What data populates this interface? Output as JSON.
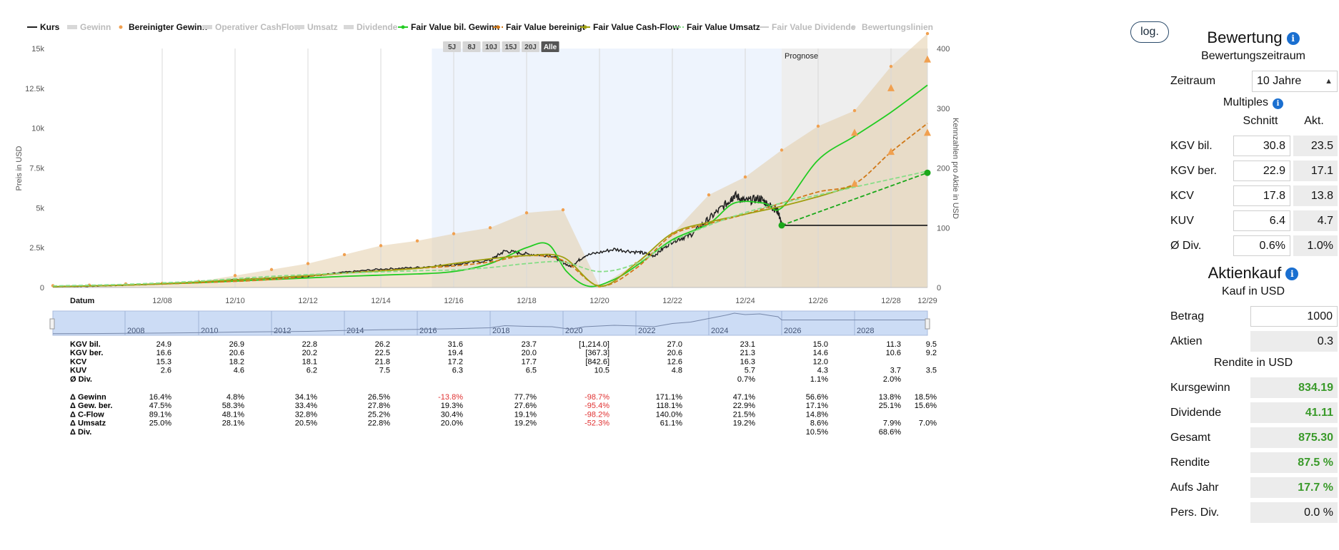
{
  "legend": [
    {
      "label": "Kurs",
      "color": "#222222",
      "style": "solid",
      "active": true
    },
    {
      "label": "Gewinn",
      "color": "#cccccc",
      "style": "area",
      "active": false
    },
    {
      "label": "Bereinigter Gewinn",
      "color": "#f0a050",
      "style": "dot",
      "active": true
    },
    {
      "label": "Operativer CashFlow",
      "color": "#cccccc",
      "style": "area",
      "active": false
    },
    {
      "label": "Umsatz",
      "color": "#cccccc",
      "style": "area",
      "active": false
    },
    {
      "label": "Dividende",
      "color": "#cccccc",
      "style": "bar",
      "active": false
    },
    {
      "label": "Fair Value bil. Gewinn",
      "color": "#22cc22",
      "style": "solid-dot",
      "active": true
    },
    {
      "label": "Fair Value bereinigt",
      "color": "#d07818",
      "style": "dashed-dot",
      "active": true
    },
    {
      "label": "Fair Value Cash-Flow",
      "color": "#a0a010",
      "style": "solid-dot",
      "active": true
    },
    {
      "label": "Fair Value Umsatz",
      "color": "#88dd88",
      "style": "dashed",
      "active": true
    },
    {
      "label": "Fair Value Dividende",
      "color": "#cccccc",
      "style": "solid",
      "active": false
    },
    {
      "label": "Bewertungslinien",
      "color": "#cccccc",
      "style": "dots",
      "active": false
    }
  ],
  "log_button": "log.",
  "range_buttons": [
    "5J",
    "8J",
    "10J",
    "15J",
    "20J",
    "Alle"
  ],
  "active_range": "Alle",
  "prognose_label": "Prognose",
  "chart_data": {
    "type": "line",
    "ylabel_left": "Preis in USD",
    "ylabel_right": "Kennzahlen pro Aktie in USD",
    "yticks_left": [
      "15k",
      "12.5k",
      "10k",
      "7.5k",
      "5k",
      "2.5k",
      "0"
    ],
    "yticks_left_values": [
      15000,
      12500,
      10000,
      7500,
      5000,
      2500,
      0
    ],
    "yticks_right": [
      "400",
      "300",
      "200",
      "100",
      "0"
    ],
    "yticks_right_values": [
      400,
      300,
      200,
      100,
      0
    ],
    "ylim_left": [
      0,
      15000
    ],
    "ylim_right": [
      0,
      400
    ],
    "xlim": [
      2005.9,
      2029.9
    ],
    "x_first_label": "Datum",
    "xticks": [
      {
        "label": "12/08",
        "x": 2008.9
      },
      {
        "label": "12/10",
        "x": 2010.9
      },
      {
        "label": "12/12",
        "x": 2012.9
      },
      {
        "label": "12/14",
        "x": 2014.9
      },
      {
        "label": "12/16",
        "x": 2016.9
      },
      {
        "label": "12/18",
        "x": 2018.9
      },
      {
        "label": "12/20",
        "x": 2020.9
      },
      {
        "label": "12/22",
        "x": 2022.9
      },
      {
        "label": "12/24",
        "x": 2024.9
      },
      {
        "label": "12/26",
        "x": 2026.9
      },
      {
        "label": "12/28",
        "x": 2028.9
      },
      {
        "label": "12/29",
        "x": 2029.9
      }
    ],
    "highlight_range": [
      2016.3,
      2025.9
    ],
    "prognose_start": 2025.9,
    "series": [
      {
        "name": "Kurs",
        "axis": "left",
        "color": "#222222",
        "points": [
          [
            2005.9,
            60
          ],
          [
            2006.9,
            80
          ],
          [
            2007.9,
            150
          ],
          [
            2008.9,
            230
          ],
          [
            2009.9,
            330
          ],
          [
            2010.9,
            500
          ],
          [
            2011.9,
            600
          ],
          [
            2012.9,
            700
          ],
          [
            2013.9,
            950
          ],
          [
            2014.9,
            1150
          ],
          [
            2015.9,
            1250
          ],
          [
            2016.9,
            1450
          ],
          [
            2017.9,
            1700
          ],
          [
            2018.3,
            2300
          ],
          [
            2018.9,
            2100
          ],
          [
            2019.6,
            2000
          ],
          [
            2020.1,
            1300
          ],
          [
            2020.5,
            2000
          ],
          [
            2021.3,
            2400
          ],
          [
            2022.0,
            2200
          ],
          [
            2022.4,
            2000
          ],
          [
            2022.9,
            2900
          ],
          [
            2023.4,
            3300
          ],
          [
            2023.9,
            4300
          ],
          [
            2024.4,
            5300
          ],
          [
            2024.6,
            5800
          ],
          [
            2024.9,
            5400
          ],
          [
            2025.3,
            5600
          ],
          [
            2025.6,
            5100
          ],
          [
            2025.8,
            4800
          ],
          [
            2025.9,
            3900
          ]
        ]
      },
      {
        "name": "Kurs Prognose",
        "axis": "left",
        "color": "#222222",
        "points": [
          [
            2025.9,
            3900
          ],
          [
            2029.9,
            3900
          ]
        ]
      },
      {
        "name": "Bereinigter Gewinn",
        "axis": "right",
        "color": "#f0a050",
        "area": true,
        "points": [
          [
            2005.9,
            3
          ],
          [
            2006.9,
            4
          ],
          [
            2007.9,
            6
          ],
          [
            2008.9,
            7
          ],
          [
            2009.9,
            10
          ],
          [
            2010.9,
            20
          ],
          [
            2011.9,
            30
          ],
          [
            2012.9,
            40
          ],
          [
            2013.9,
            55
          ],
          [
            2014.9,
            70
          ],
          [
            2015.9,
            78
          ],
          [
            2016.9,
            90
          ],
          [
            2017.9,
            100
          ],
          [
            2018.9,
            125
          ],
          [
            2019.9,
            130
          ],
          [
            2020.9,
            2
          ],
          [
            2021.9,
            40
          ],
          [
            2022.9,
            90
          ],
          [
            2023.9,
            155
          ],
          [
            2024.9,
            185
          ],
          [
            2025.9,
            230
          ],
          [
            2026.9,
            270
          ],
          [
            2027.9,
            296
          ],
          [
            2028.9,
            370
          ],
          [
            2029.9,
            425
          ]
        ]
      },
      {
        "name": "Fair Value bil. Gewinn",
        "axis": "left",
        "color": "#22cc22",
        "points": [
          [
            2005.9,
            50
          ],
          [
            2007.9,
            150
          ],
          [
            2009.9,
            300
          ],
          [
            2011.9,
            500
          ],
          [
            2013.9,
            700
          ],
          [
            2015.9,
            850
          ],
          [
            2016.9,
            1000
          ],
          [
            2017.9,
            1500
          ],
          [
            2018.9,
            2500
          ],
          [
            2019.5,
            2700
          ],
          [
            2020.0,
            1000
          ],
          [
            2020.6,
            80
          ],
          [
            2021.3,
            500
          ],
          [
            2022.0,
            1500
          ],
          [
            2022.9,
            3000
          ],
          [
            2023.9,
            4000
          ],
          [
            2024.6,
            5300
          ],
          [
            2025.4,
            5300
          ],
          [
            2025.9,
            5000
          ],
          [
            2026.9,
            8000
          ],
          [
            2027.9,
            9500
          ],
          [
            2028.9,
            11000
          ],
          [
            2029.9,
            12700
          ]
        ]
      },
      {
        "name": "Fair Value bereinigt",
        "axis": "left",
        "color": "#d07818",
        "dashed": true,
        "points": [
          [
            2005.9,
            50
          ],
          [
            2007.9,
            150
          ],
          [
            2009.9,
            300
          ],
          [
            2011.9,
            500
          ],
          [
            2013.9,
            900
          ],
          [
            2015.9,
            1200
          ],
          [
            2016.9,
            1350
          ],
          [
            2017.9,
            1600
          ],
          [
            2018.9,
            2000
          ],
          [
            2019.9,
            1700
          ],
          [
            2020.9,
            100
          ],
          [
            2021.9,
            1200
          ],
          [
            2022.9,
            3300
          ],
          [
            2023.9,
            4000
          ],
          [
            2024.9,
            4600
          ],
          [
            2025.9,
            5300
          ],
          [
            2026.9,
            6000
          ],
          [
            2027.9,
            6500
          ],
          [
            2028.9,
            8500
          ],
          [
            2029.9,
            10300
          ]
        ]
      },
      {
        "name": "Fair Value Cash-Flow",
        "axis": "left",
        "color": "#a0a010",
        "points": [
          [
            2005.9,
            50
          ],
          [
            2007.9,
            150
          ],
          [
            2009.9,
            350
          ],
          [
            2011.9,
            600
          ],
          [
            2013.9,
            900
          ],
          [
            2015.9,
            1200
          ],
          [
            2016.9,
            1500
          ],
          [
            2017.9,
            1800
          ],
          [
            2018.9,
            2000
          ],
          [
            2019.9,
            1900
          ],
          [
            2020.9,
            80
          ],
          [
            2021.9,
            1500
          ],
          [
            2022.9,
            3400
          ],
          [
            2023.9,
            4100
          ],
          [
            2024.9,
            4600
          ],
          [
            2025.9,
            5100
          ],
          [
            2026.9,
            5700
          ],
          [
            2027.9,
            6400
          ]
        ]
      },
      {
        "name": "Fair Value Umsatz",
        "axis": "left",
        "color": "#88dd88",
        "dashed": true,
        "points": [
          [
            2005.9,
            100
          ],
          [
            2007.9,
            200
          ],
          [
            2009.9,
            400
          ],
          [
            2011.9,
            700
          ],
          [
            2013.9,
            900
          ],
          [
            2015.9,
            1050
          ],
          [
            2016.9,
            1100
          ],
          [
            2017.9,
            1250
          ],
          [
            2018.9,
            1500
          ],
          [
            2019.9,
            1600
          ],
          [
            2020.9,
            1000
          ],
          [
            2021.9,
            1500
          ],
          [
            2022.9,
            2900
          ],
          [
            2023.9,
            3900
          ],
          [
            2024.9,
            4700
          ],
          [
            2025.9,
            5300
          ],
          [
            2026.9,
            5800
          ],
          [
            2027.9,
            6300
          ],
          [
            2028.9,
            6800
          ],
          [
            2029.9,
            7300
          ]
        ]
      },
      {
        "name": "Fair Value Projektion",
        "axis": "left",
        "color": "#1aa81a",
        "dashed": true,
        "points": [
          [
            2025.9,
            3900
          ],
          [
            2029.9,
            7200
          ]
        ]
      }
    ],
    "triangle_markers": [
      [
        2027.9,
        9700
      ],
      [
        2028.9,
        12500
      ],
      [
        2029.9,
        14300
      ],
      [
        2029.9,
        9700
      ],
      [
        2028.9,
        8500
      ],
      [
        2027.9,
        6500
      ]
    ],
    "circle_markers": [
      [
        2025.9,
        3900
      ],
      [
        2029.9,
        7200
      ]
    ],
    "navigator_labels": [
      "2008",
      "2010",
      "2012",
      "2014",
      "2016",
      "2018",
      "2020",
      "2022",
      "2024",
      "2026",
      "2028"
    ]
  },
  "table": {
    "rows1": [
      {
        "label": "KGV bil.",
        "values": [
          "24.9",
          "26.9",
          "22.8",
          "26.2",
          "31.6",
          "23.7",
          "[1,214.0]",
          "27.0",
          "23.1",
          "15.0",
          "11.3",
          "9.5"
        ]
      },
      {
        "label": "KGV ber.",
        "values": [
          "16.6",
          "20.6",
          "20.2",
          "22.5",
          "19.4",
          "20.0",
          "[367.3]",
          "20.6",
          "21.3",
          "14.6",
          "10.6",
          "9.2"
        ]
      },
      {
        "label": "KCV",
        "values": [
          "15.3",
          "18.2",
          "18.1",
          "21.8",
          "17.2",
          "17.7",
          "[842.6]",
          "12.6",
          "16.3",
          "12.0",
          "",
          ""
        ]
      },
      {
        "label": "KUV",
        "values": [
          "2.6",
          "4.6",
          "6.2",
          "7.5",
          "6.3",
          "6.5",
          "10.5",
          "4.8",
          "5.7",
          "4.3",
          "3.7",
          "3.5"
        ]
      },
      {
        "label": "Ø Div.",
        "values": [
          "",
          "",
          "",
          "",
          "",
          "",
          "",
          "",
          "0.7%",
          "1.1%",
          "2.0%",
          ""
        ]
      }
    ],
    "rows2": [
      {
        "label": "Δ Gewinn",
        "values": [
          "16.4%",
          "4.8%",
          "34.1%",
          "26.5%",
          "-13.8%",
          "77.7%",
          "-98.7%",
          "171.1%",
          "47.1%",
          "56.6%",
          "13.8%",
          "18.5%"
        ]
      },
      {
        "label": "Δ Gew. ber.",
        "values": [
          "47.5%",
          "58.3%",
          "33.4%",
          "27.8%",
          "19.3%",
          "27.6%",
          "-95.4%",
          "118.1%",
          "22.9%",
          "17.1%",
          "25.1%",
          "15.6%"
        ]
      },
      {
        "label": "Δ C-Flow",
        "values": [
          "89.1%",
          "48.1%",
          "32.8%",
          "25.2%",
          "30.4%",
          "19.1%",
          "-98.2%",
          "140.0%",
          "21.5%",
          "14.8%",
          "",
          ""
        ]
      },
      {
        "label": "Δ Umsatz",
        "values": [
          "25.0%",
          "28.1%",
          "20.5%",
          "22.8%",
          "20.0%",
          "19.2%",
          "-52.3%",
          "61.1%",
          "19.2%",
          "8.6%",
          "7.9%",
          "7.0%"
        ]
      },
      {
        "label": "Δ Div.",
        "values": [
          "",
          "",
          "",
          "",
          "",
          "",
          "",
          "",
          "",
          "10.5%",
          "68.6%",
          ""
        ]
      }
    ]
  },
  "panel": {
    "bewertung_title": "Bewertung",
    "zeitraum_heading": "Bewertungszeitraum",
    "zeitraum_label": "Zeitraum",
    "zeitraum_value": "10 Jahre",
    "multiples_heading": "Multiples",
    "col_schnitt": "Schnitt",
    "col_akt": "Akt.",
    "multiples": [
      {
        "label": "KGV bil.",
        "schnitt": "30.8",
        "akt": "23.5"
      },
      {
        "label": "KGV ber.",
        "schnitt": "22.9",
        "akt": "17.1"
      },
      {
        "label": "KCV",
        "schnitt": "17.8",
        "akt": "13.8"
      },
      {
        "label": "KUV",
        "schnitt": "6.4",
        "akt": "4.7"
      },
      {
        "label": "Ø Div.",
        "schnitt": "0.6%",
        "akt": "1.0%"
      }
    ],
    "aktienkauf_title": "Aktienkauf",
    "kauf_heading": "Kauf in USD",
    "betrag_label": "Betrag",
    "betrag_value": "1000",
    "aktien_label": "Aktien",
    "aktien_value": "0.3",
    "rendite_heading": "Rendite in USD",
    "results": [
      {
        "label": "Kursgewinn",
        "value": "834.19"
      },
      {
        "label": "Dividende",
        "value": "41.11"
      },
      {
        "label": "Gesamt",
        "value": "875.30"
      },
      {
        "label": "Rendite",
        "value": "87.5 %"
      },
      {
        "label": "Aufs Jahr",
        "value": "17.7 %"
      }
    ],
    "pers_div_label": "Pers. Div.",
    "pers_div_value": "0.0 %"
  }
}
